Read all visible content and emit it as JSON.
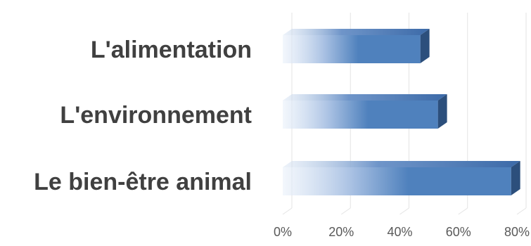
{
  "chart_data": {
    "type": "bar",
    "orientation": "horizontal",
    "style": "3d-gradient",
    "categories": [
      "L'alimentation",
      "L'environnement",
      "Le bien-être animal"
    ],
    "values": [
      47,
      53,
      78
    ],
    "unit": "%",
    "xlim": [
      0,
      80
    ],
    "xticks": [
      0,
      20,
      40,
      60,
      80
    ],
    "xtick_labels": [
      "0%",
      "20%",
      "40%",
      "60%",
      "80%"
    ],
    "title": "",
    "xlabel": "",
    "ylabel": "",
    "grid": true,
    "legend": "none",
    "colors": {
      "bar_front": "#4f81bd",
      "bar_light": "#eaf1fa",
      "bar_top": "#3c6aa8",
      "bar_side": "#2c4f7c",
      "grid": "#e3e3e3",
      "label_text": "#404040",
      "tick_text": "#595959"
    }
  }
}
